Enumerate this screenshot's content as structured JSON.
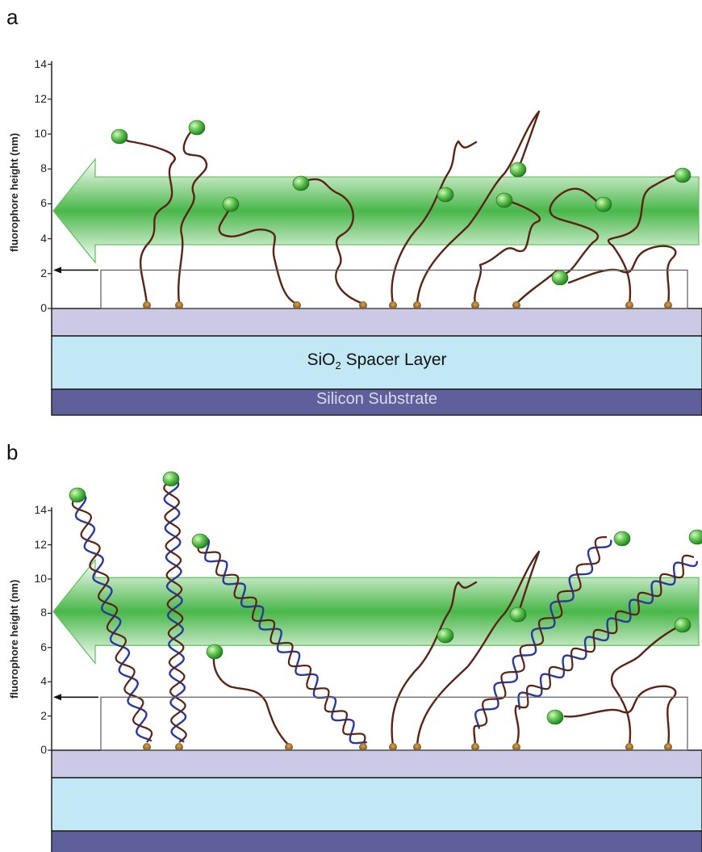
{
  "figure": {
    "panel_a": {
      "letter": "a",
      "y_axis": {
        "label": "fluorophore height (nm)",
        "ticks": [
          "0",
          "2",
          "4",
          "6",
          "8",
          "10",
          "12",
          "14"
        ]
      },
      "layers": {
        "spacer_main": "SiO",
        "spacer_sub": "2",
        "spacer_rest": " Spacer Layer",
        "substrate": "Silicon Substrate"
      },
      "mean_height_nm": 2.2,
      "band_center_nm": 5.6
    },
    "panel_b": {
      "letter": "b",
      "y_axis": {
        "label": "fluorophore height (nm)",
        "ticks": [
          "0",
          "2",
          "4",
          "6",
          "8",
          "10",
          "12",
          "14"
        ]
      },
      "mean_height_nm": 3.1,
      "band_center_nm": 8.1
    },
    "colors": {
      "oxide_top": "#cbc9e6",
      "oxide_spacer": "#c2e8f6",
      "substrate": "#5e5f9b",
      "substrate_text": "#d9dbef",
      "band": "#36b036",
      "ssdna": "#5a2414",
      "dsdna_blue": "#2a3a9a",
      "fluorophore": "#3fae3a"
    }
  }
}
